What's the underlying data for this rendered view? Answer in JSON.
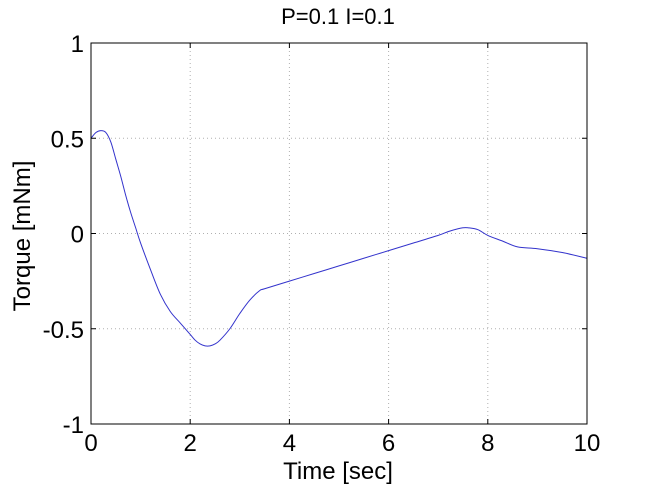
{
  "chart_data": {
    "type": "line",
    "title": "P=0.1 I=0.1",
    "xlabel": "Time [sec]",
    "ylabel": "Torque [mNm]",
    "xlim": [
      0,
      10
    ],
    "ylim": [
      -1,
      1
    ],
    "x_ticks": [
      0,
      2,
      4,
      6,
      8,
      10
    ],
    "x_tick_labels": [
      "0",
      "2",
      "4",
      "6",
      "8",
      "10"
    ],
    "y_ticks": [
      1,
      0.5,
      0,
      -0.5,
      -1
    ],
    "y_tick_labels": [
      "1",
      "0.5",
      "0",
      "-0.5",
      "-1"
    ],
    "grid": true,
    "colors": {
      "line": "#3333cc",
      "grid": "#b0b0b0",
      "axes": "#000000"
    },
    "series": [
      {
        "x": [
          0,
          0.1,
          0.2,
          0.3,
          0.4,
          0.5,
          0.6,
          0.7,
          0.8,
          0.9,
          1.0,
          1.2,
          1.4,
          1.6,
          1.8,
          2.0,
          2.1,
          2.2,
          2.3,
          2.4,
          2.5,
          2.6,
          2.8,
          3.0,
          3.2,
          3.4,
          3.5,
          4.0,
          4.5,
          5.0,
          5.5,
          6.0,
          6.5,
          7.0,
          7.2,
          7.4,
          7.5,
          7.6,
          7.8,
          8.0,
          8.3,
          8.6,
          9.0,
          9.5,
          10.0
        ],
        "y": [
          0.5,
          0.53,
          0.54,
          0.53,
          0.48,
          0.39,
          0.3,
          0.2,
          0.11,
          0.03,
          -0.05,
          -0.19,
          -0.32,
          -0.41,
          -0.47,
          -0.53,
          -0.56,
          -0.58,
          -0.59,
          -0.59,
          -0.58,
          -0.56,
          -0.5,
          -0.42,
          -0.35,
          -0.3,
          -0.29,
          -0.25,
          -0.21,
          -0.17,
          -0.13,
          -0.09,
          -0.05,
          -0.01,
          0.01,
          0.025,
          0.03,
          0.03,
          0.02,
          -0.01,
          -0.04,
          -0.07,
          -0.08,
          -0.1,
          -0.13
        ]
      }
    ]
  }
}
